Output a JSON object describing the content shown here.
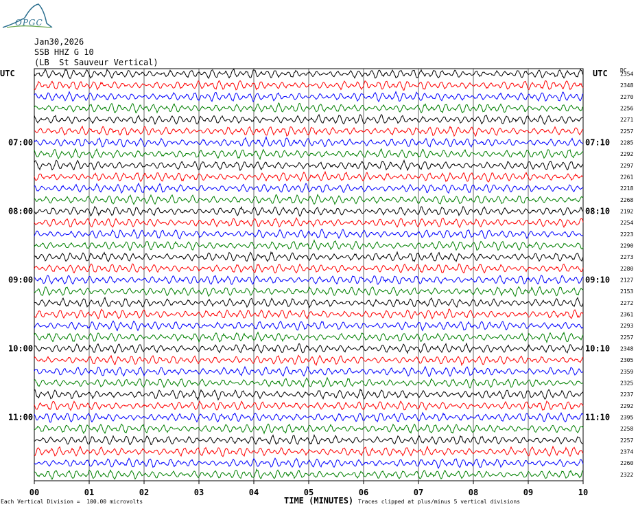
{
  "header": {
    "logo_text": "OPGC",
    "date": "Jan30,2026",
    "station": "SSB HHZ G 10",
    "location": "(LB  St Sauveur Vertical)"
  },
  "left_axis_label": "UTC",
  "right_axis_label": "UTC",
  "right_column_label": "DC",
  "footer": {
    "scale": "Each Vertical Division =  100.00 microvolts",
    "xlabel": "TIME (MINUTES)",
    "clip_note": "Traces clipped at plus/minus 5 vertical divisions"
  },
  "colors": {
    "trace_cycle": [
      "#000000",
      "#ff0000",
      "#0000ff",
      "#008000"
    ],
    "grid": "#000000",
    "logo": "#2a6e8e"
  },
  "chart_data": {
    "type": "line",
    "subtype": "helicorder",
    "xlabel": "TIME (MINUTES)",
    "xlim": [
      0,
      10
    ],
    "x_ticks": [
      "00",
      "01",
      "02",
      "03",
      "04",
      "05",
      "06",
      "07",
      "08",
      "09",
      "10"
    ],
    "left_time_labels": [
      "07:00",
      "08:00",
      "09:00",
      "10:00",
      "11:00"
    ],
    "left_time_label_rows": [
      6,
      12,
      18,
      24,
      30
    ],
    "right_time_labels": [
      "07:10",
      "08:10",
      "09:10",
      "10:10",
      "11:10"
    ],
    "right_time_label_rows": [
      6,
      12,
      18,
      24,
      30
    ],
    "row_offsets_dc": [
      2354,
      2348,
      2270,
      2256,
      2271,
      2257,
      2285,
      2292,
      2297,
      2261,
      2218,
      2268,
      2192,
      2254,
      2223,
      2290,
      2273,
      2280,
      2127,
      2153,
      2272,
      2361,
      2293,
      2257,
      2348,
      2305,
      2359,
      2325,
      2237,
      2292,
      2395,
      2258,
      2257,
      2374,
      2260,
      2322
    ],
    "minutes_per_row": 10,
    "vertical_division_microvolts": 100.0,
    "grid": true
  }
}
